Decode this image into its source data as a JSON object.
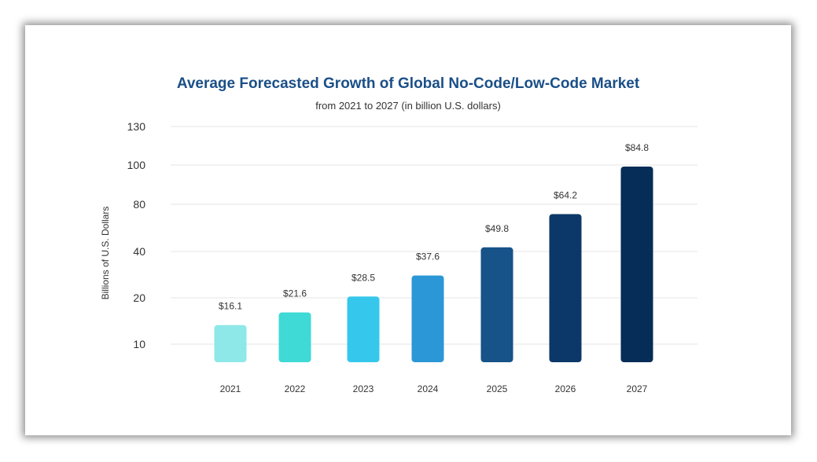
{
  "chart_data": {
    "type": "bar",
    "title": "Average Forecasted Growth of Global No-Code/Low-Code  Market",
    "subtitle": "from 2021 to 2027 (in billion U.S. dollars)",
    "xlabel": "",
    "ylabel": "Billions of U.S. Dollars",
    "yticks": [
      "130",
      "100",
      "80",
      "40",
      "20",
      "10"
    ],
    "categories": [
      "2021",
      "2022",
      "2023",
      "2024",
      "2025",
      "2026",
      "2027"
    ],
    "values": [
      16.1,
      21.6,
      28.5,
      37.6,
      49.8,
      64.2,
      84.8
    ],
    "data_labels": [
      "$16.1",
      "$21.6",
      "$28.5",
      "$37.6",
      "$49.8",
      "$64.2",
      "$84.8"
    ],
    "grid": true,
    "legend": "none",
    "colors": [
      "#8ee8e8",
      "#3fd9d6",
      "#36c8ec",
      "#2b97d6",
      "#175288",
      "#0b3868",
      "#062d57"
    ]
  }
}
